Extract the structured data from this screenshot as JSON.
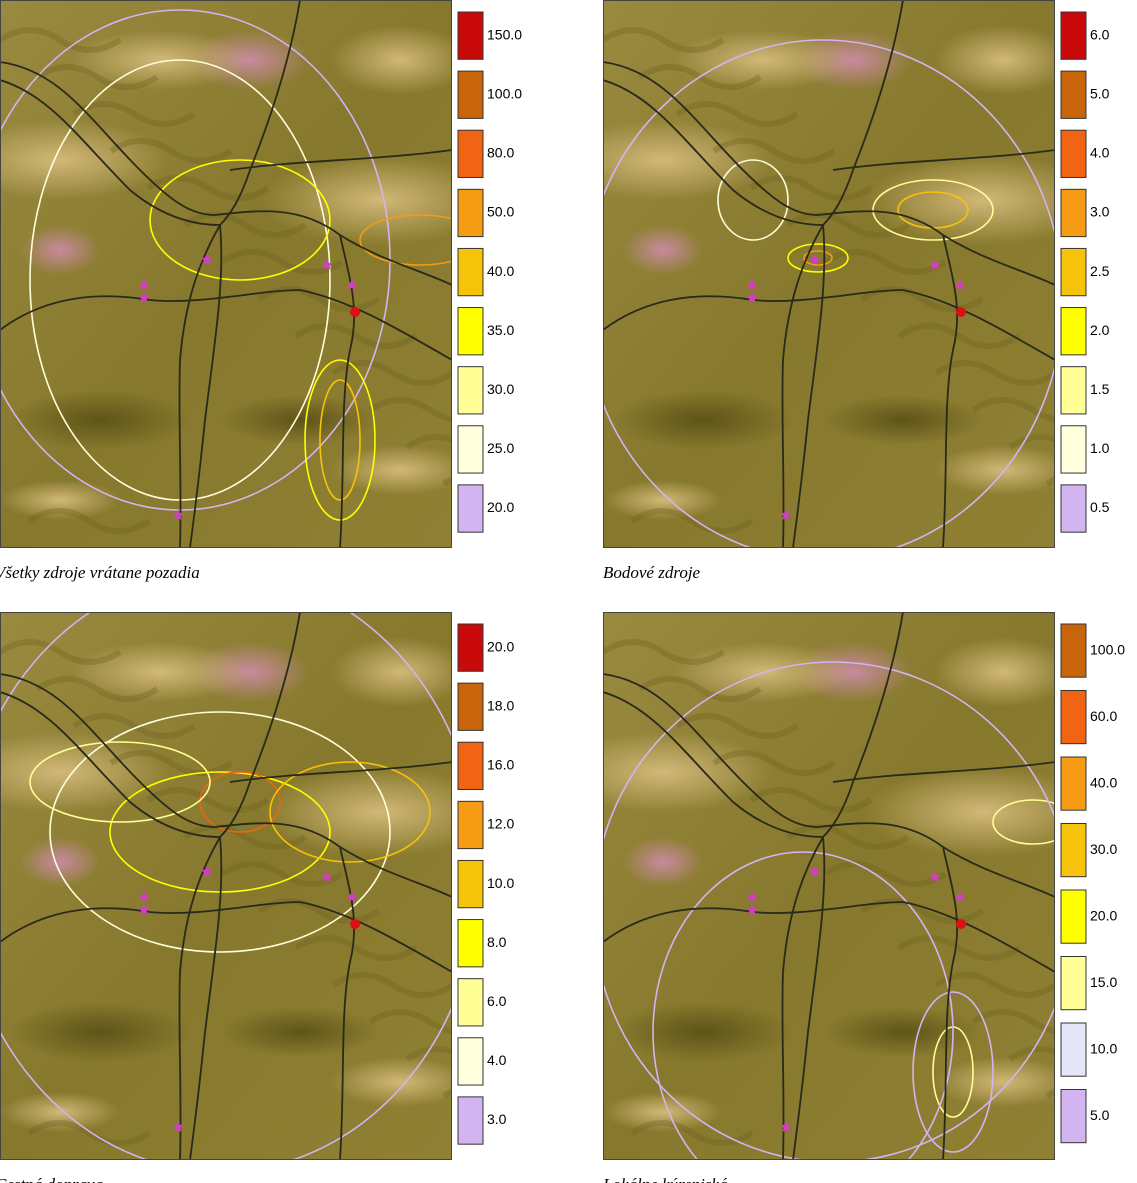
{
  "panels": [
    {
      "caption": "Všetky zdroje vrátane pozadia",
      "legend": [
        {
          "label": "150.0",
          "color": "#c80a0a"
        },
        {
          "label": "100.0",
          "color": "#c8640a"
        },
        {
          "label": "80.0",
          "color": "#f06414"
        },
        {
          "label": "50.0",
          "color": "#f59b14"
        },
        {
          "label": "40.0",
          "color": "#f5c30a"
        },
        {
          "label": "35.0",
          "color": "#ffff00"
        },
        {
          "label": "30.0",
          "color": "#ffff96"
        },
        {
          "label": "25.0",
          "color": "#ffffdc"
        },
        {
          "label": "20.0",
          "color": "#d2b4f0"
        }
      ]
    },
    {
      "caption": "Bodové zdroje",
      "legend": [
        {
          "label": "6.0",
          "color": "#c80a0a"
        },
        {
          "label": "5.0",
          "color": "#c8640a"
        },
        {
          "label": "4.0",
          "color": "#f06414"
        },
        {
          "label": "3.0",
          "color": "#f59b14"
        },
        {
          "label": "2.5",
          "color": "#f5c30a"
        },
        {
          "label": "2.0",
          "color": "#ffff00"
        },
        {
          "label": "1.5",
          "color": "#ffff96"
        },
        {
          "label": "1.0",
          "color": "#ffffdc"
        },
        {
          "label": "0.5",
          "color": "#d2b4f0"
        }
      ]
    },
    {
      "caption": "Cestná doprava",
      "legend": [
        {
          "label": "20.0",
          "color": "#c80a0a"
        },
        {
          "label": "18.0",
          "color": "#c8640a"
        },
        {
          "label": "16.0",
          "color": "#f06414"
        },
        {
          "label": "12.0",
          "color": "#f59b14"
        },
        {
          "label": "10.0",
          "color": "#f5c30a"
        },
        {
          "label": "8.0",
          "color": "#ffff00"
        },
        {
          "label": "6.0",
          "color": "#ffff96"
        },
        {
          "label": "4.0",
          "color": "#ffffdc"
        },
        {
          "label": "3.0",
          "color": "#d2b4f0"
        }
      ]
    },
    {
      "caption": "Lokálne kúreniská",
      "legend": [
        {
          "label": "100.0",
          "color": "#c8640a"
        },
        {
          "label": "60.0",
          "color": "#f06414"
        },
        {
          "label": "40.0",
          "color": "#f59b14"
        },
        {
          "label": "30.0",
          "color": "#f5c30a"
        },
        {
          "label": "20.0",
          "color": "#ffff00"
        },
        {
          "label": "15.0",
          "color": "#ffff96"
        },
        {
          "label": "10.0",
          "color": "#e6e6fa"
        },
        {
          "label": "5.0",
          "color": "#d2b4f0"
        }
      ]
    }
  ]
}
